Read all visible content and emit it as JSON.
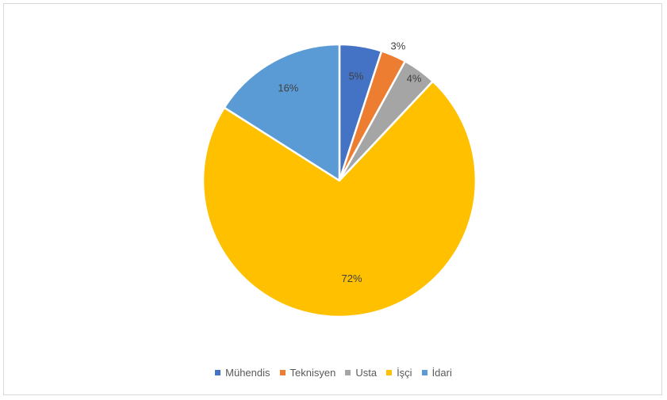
{
  "chart_data": {
    "type": "pie",
    "categories": [
      "Mühendis",
      "Teknisyen",
      "Usta",
      "İşçi",
      "İdari"
    ],
    "values": [
      5,
      3,
      4,
      72,
      16
    ],
    "labels": [
      "5%",
      "3%",
      "4%",
      "72%",
      "16%"
    ],
    "colors": [
      "#4472C4",
      "#ED7D31",
      "#A5A5A5",
      "#FFC000",
      "#5B9BD5"
    ],
    "legend_position": "bottom",
    "start_angle_deg": 0,
    "direction": "clockwise"
  }
}
